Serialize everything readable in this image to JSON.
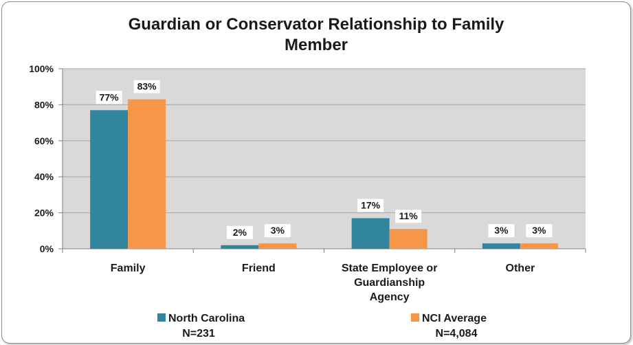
{
  "chart_data": {
    "type": "bar",
    "title": "Guardian or Conservator Relationship to Family Member",
    "title_lines": [
      "Guardian or Conservator Relationship to Family",
      "Member"
    ],
    "categories": [
      "Family",
      "Friend",
      "State Employee or Guardianship Agency",
      "Other"
    ],
    "category_lines": [
      [
        "Family"
      ],
      [
        "Friend"
      ],
      [
        "State Employee or",
        "Guardianship",
        "Agency"
      ],
      [
        "Other"
      ]
    ],
    "series": [
      {
        "name": "North Carolina",
        "values": [
          77,
          2,
          17,
          3
        ],
        "color": "#31859c",
        "note": "N=231"
      },
      {
        "name": "NCI Average",
        "values": [
          83,
          3,
          11,
          3
        ],
        "color": "#f79646",
        "note": "N=4,084"
      }
    ],
    "data_labels": [
      [
        "77%",
        "2%",
        "17%",
        "3%"
      ],
      [
        "83%",
        "3%",
        "11%",
        "3%"
      ]
    ],
    "yticks": [
      "0%",
      "20%",
      "40%",
      "60%",
      "80%",
      "100%"
    ],
    "ylim": [
      0,
      100
    ],
    "grid": true,
    "plot_background": "#d9d9d9",
    "legend_position": "bottom"
  }
}
